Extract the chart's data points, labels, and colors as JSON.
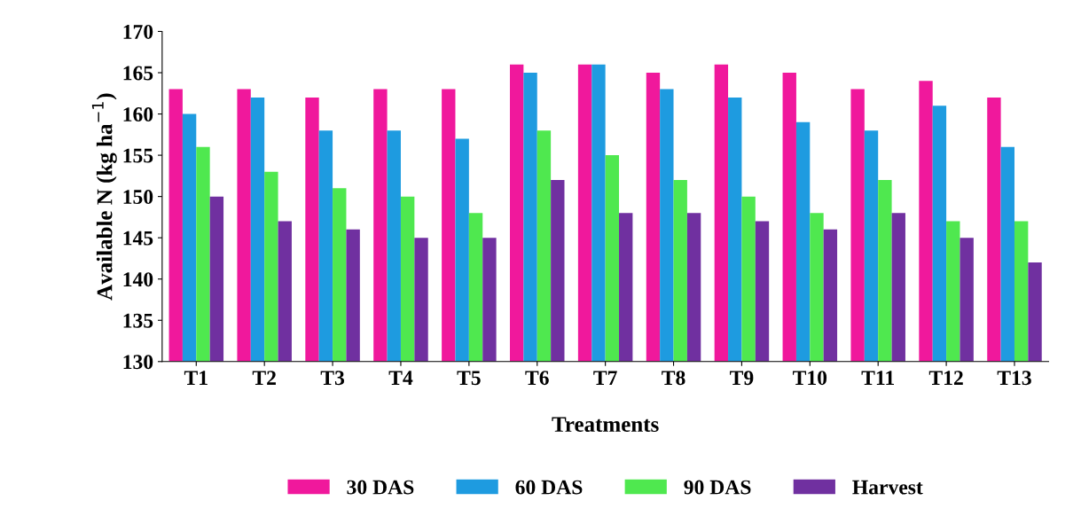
{
  "chart_data": {
    "type": "bar",
    "xlabel": "Treatments",
    "ylabel": "Available N (kg ha$^{−1}$)",
    "categories": [
      "T1",
      "T2",
      "T3",
      "T4",
      "T5",
      "T6",
      "T7",
      "T8",
      "T9",
      "T10",
      "T11",
      "T12",
      "T13"
    ],
    "series": [
      {
        "name": "30 DAS",
        "color": "#f0189c",
        "values": [
          163,
          163,
          162,
          163,
          163,
          166,
          166,
          165,
          166,
          165,
          163,
          164,
          162
        ]
      },
      {
        "name": "60 DAS",
        "color": "#1e9be0",
        "values": [
          160,
          162,
          158,
          158,
          157,
          165,
          166,
          163,
          162,
          159,
          158,
          161,
          156
        ]
      },
      {
        "name": "90 DAS",
        "color": "#4fe84f",
        "values": [
          156,
          153,
          151,
          150,
          148,
          158,
          155,
          152,
          150,
          148,
          152,
          147,
          147
        ]
      },
      {
        "name": "Harvest",
        "color": "#7030a0",
        "values": [
          150,
          147,
          146,
          145,
          145,
          152,
          148,
          148,
          147,
          146,
          148,
          145,
          142
        ]
      }
    ],
    "ylim": [
      130,
      170
    ],
    "yticks": [
      130,
      135,
      140,
      145,
      150,
      155,
      160,
      165,
      170
    ],
    "grid": false,
    "legend": "bottom"
  }
}
